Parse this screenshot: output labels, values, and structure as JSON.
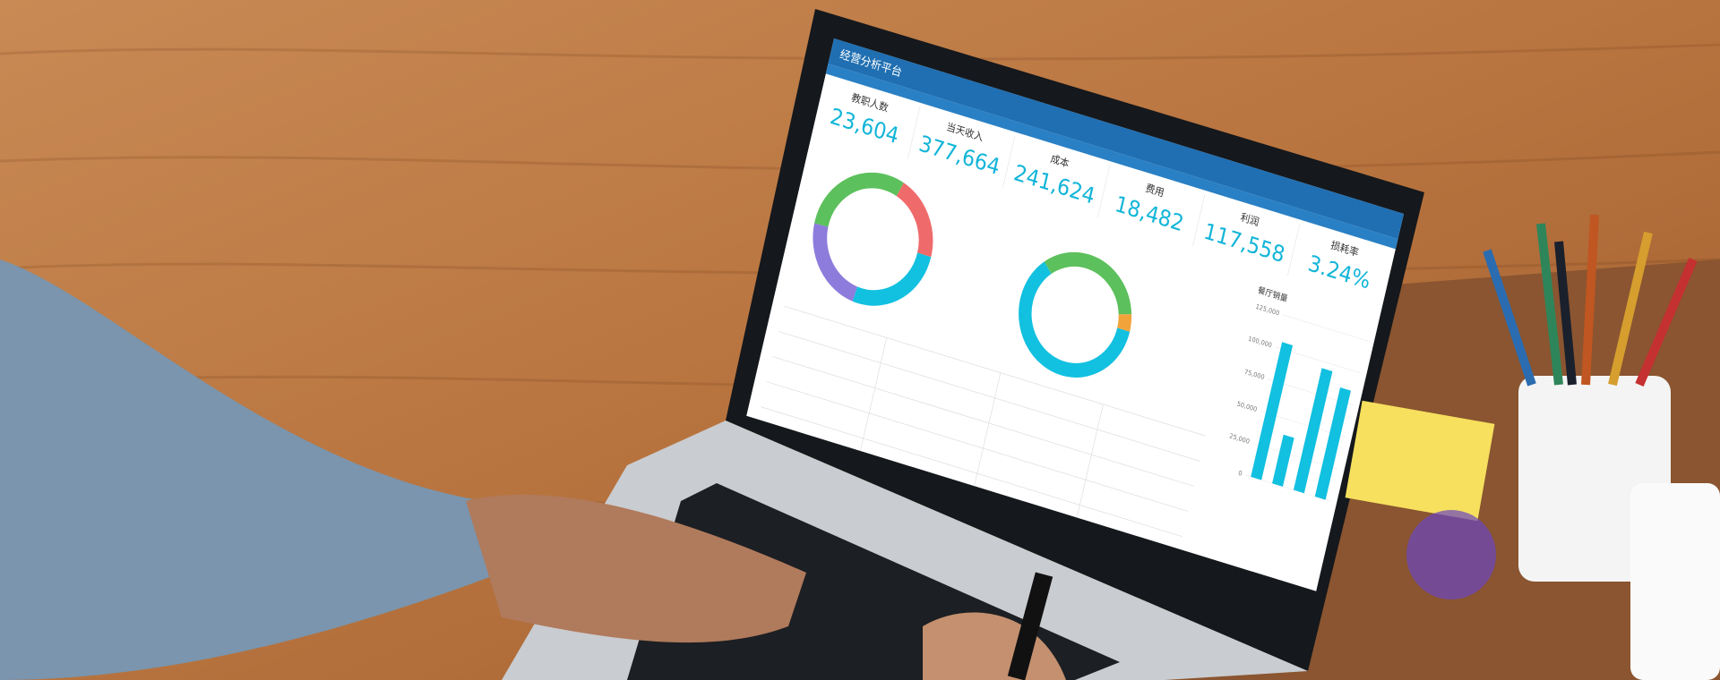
{
  "header": {
    "title": "经营分析平台"
  },
  "kpis": [
    {
      "label": "教职人数",
      "value": "23,604"
    },
    {
      "label": "当天收入",
      "value": "377,664"
    },
    {
      "label": "成本",
      "value": "241,624"
    },
    {
      "label": "费用",
      "value": "18,482"
    },
    {
      "label": "利润",
      "value": "117,558"
    },
    {
      "label": "损耗率",
      "value": "3.24%"
    }
  ],
  "bar_chart": {
    "title": "餐厅销量",
    "color": "#12c0e0",
    "values": [
      105000,
      38000,
      95000,
      85000
    ],
    "ylim": [
      0,
      125000
    ],
    "yticks": [
      0,
      {
        "value": 25000,
        "label": "25,000"
      },
      {
        "value": 50000,
        "label": "50,000"
      },
      {
        "value": 75000,
        "label": "75,000"
      },
      {
        "value": 100000,
        "label": "100,000"
      },
      {
        "value": 125000,
        "label": "125,000"
      }
    ]
  }
}
